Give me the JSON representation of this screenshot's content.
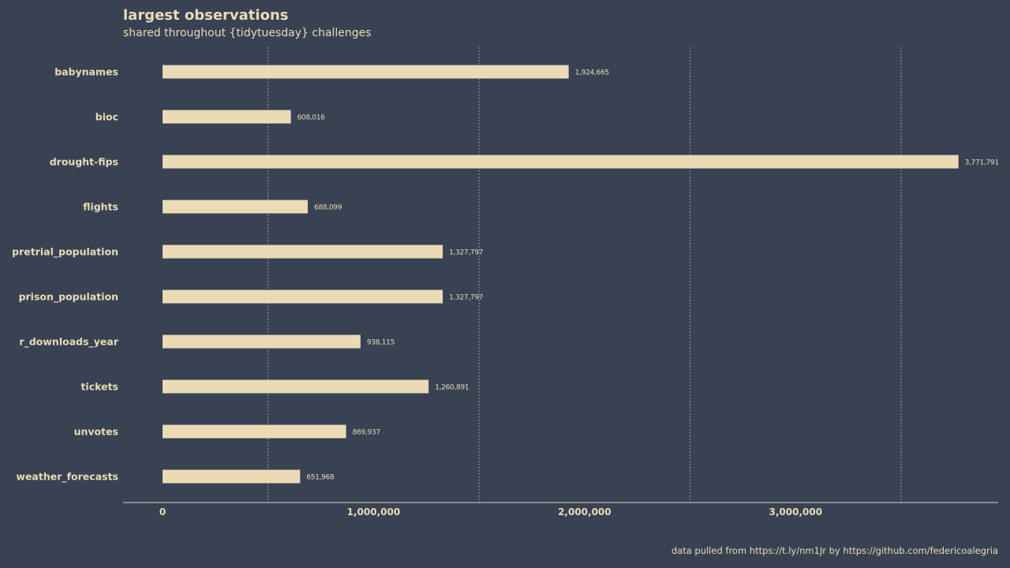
{
  "chart_data": {
    "type": "bar",
    "orientation": "horizontal",
    "title": "largest observations",
    "subtitle": "shared throughout {tidytuesday} challenges",
    "caption": "data pulled from https://t.ly/nm1Jr by https://github.com/federicoalegria",
    "categories": [
      "babynames",
      "bioc",
      "drought-fips",
      "flights",
      "pretrial_population",
      "prison_population",
      "r_downloads_year",
      "tickets",
      "unvotes",
      "weather_forecasts"
    ],
    "values": [
      1924665,
      608016,
      3771791,
      688099,
      1327797,
      1327797,
      938115,
      1260891,
      869937,
      651968
    ],
    "value_labels": [
      "1,924,665",
      "608,016",
      "3,771,791",
      "688,099",
      "1,327,797",
      "1,327,797",
      "938,115",
      "1,260,891",
      "869,937",
      "651,968"
    ],
    "x_ticks": [
      0,
      1000000,
      2000000,
      3000000
    ],
    "x_tick_labels": [
      "0",
      "1,000,000",
      "2,000,000",
      "3,000,000"
    ],
    "x_minor_grid": [
      500000,
      1500000,
      2500000,
      3500000
    ],
    "xlim": [
      -187000,
      3960000
    ],
    "grid": "vertical dotted lines at half-millions",
    "legend": "none",
    "colors": {
      "background": "#384253",
      "bar": "#eadbb6",
      "text": "#eadbb6",
      "grid": "#b9b6a6",
      "axis": "#d9d4c2"
    }
  }
}
